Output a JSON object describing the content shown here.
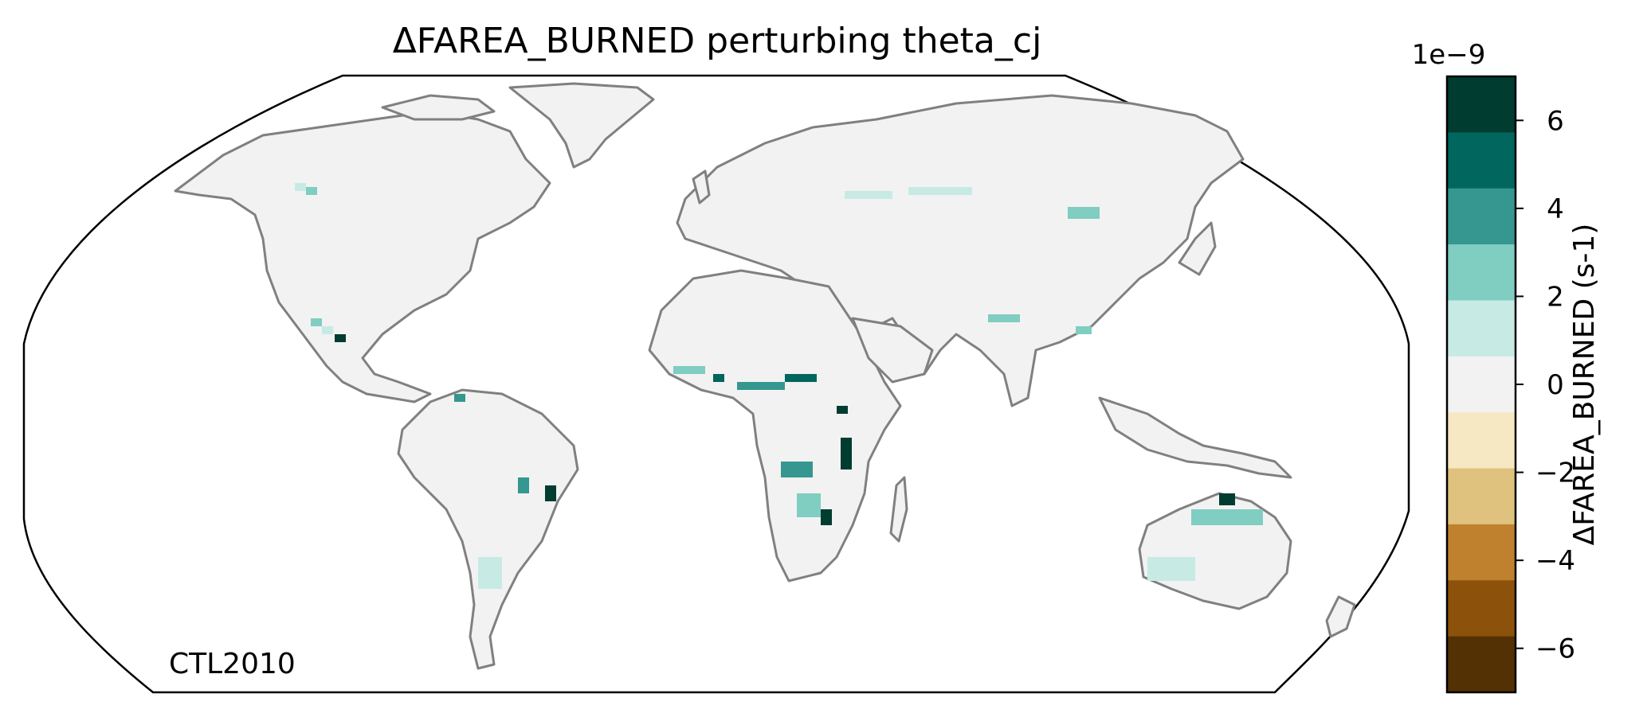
{
  "title": "ΔFAREA_BURNED perturbing theta_cj",
  "run_label": "CTL2010",
  "colorbar": {
    "label": "ΔFAREA_BURNED (s-1)",
    "offset_text": "1e−9",
    "ticks": [
      {
        "value": 6,
        "label": "6"
      },
      {
        "value": 4,
        "label": "4"
      },
      {
        "value": 2,
        "label": "2"
      },
      {
        "value": 0,
        "label": "0"
      },
      {
        "value": -2,
        "label": "−2"
      },
      {
        "value": -4,
        "label": "−4"
      },
      {
        "value": -6,
        "label": "−6"
      }
    ],
    "range": [
      -7,
      7
    ],
    "bins": [
      {
        "from": 5.6,
        "to": 7.0,
        "color": "#003c30"
      },
      {
        "from": 4.2,
        "to": 5.6,
        "color": "#01665e"
      },
      {
        "from": 2.8,
        "to": 4.2,
        "color": "#35978f"
      },
      {
        "from": 1.4,
        "to": 2.8,
        "color": "#80cdc1"
      },
      {
        "from": 0.0,
        "to": 1.4,
        "color": "#c7eae5"
      },
      {
        "from": -1.4,
        "to": 0.0,
        "color": "#f2f2f2"
      },
      {
        "from": -2.8,
        "to": -1.4,
        "color": "#f6e8c3"
      },
      {
        "from": -4.2,
        "to": -2.8,
        "color": "#dfc27d"
      },
      {
        "from": -5.6,
        "to": -4.2,
        "color": "#bf812d"
      },
      {
        "from": -7.0,
        "to": -5.6,
        "color": "#8c510a"
      },
      {
        "from": -8.4,
        "to": -7.0,
        "color": "#543005"
      }
    ]
  },
  "map": {
    "projection": "Robinson",
    "land_color": "#f2f2f2",
    "coastline_color": "#808080",
    "border_color": "#c8c8c8"
  }
}
